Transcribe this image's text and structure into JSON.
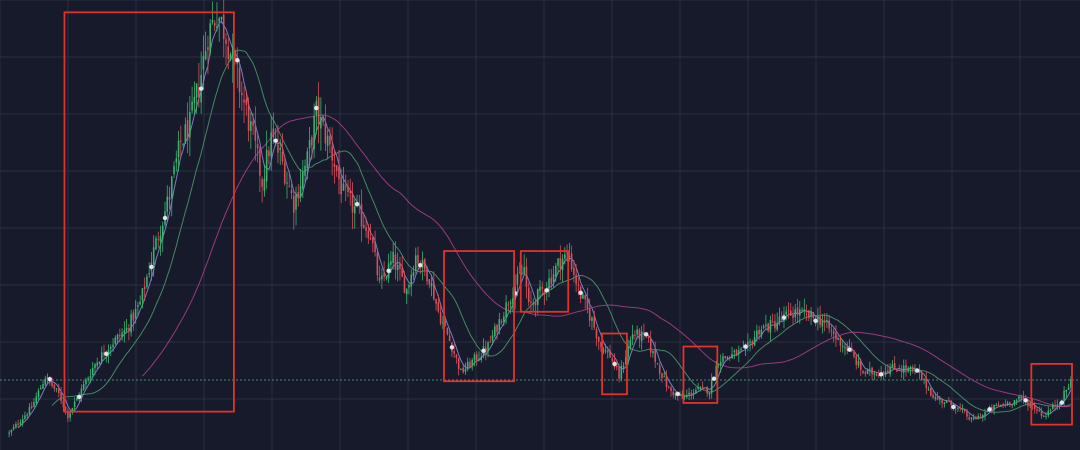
{
  "chart_data": {
    "type": "candlestick",
    "theme": {
      "background": "#161a2a",
      "grid": "#2a3042",
      "up": "#3cb371",
      "down": "#d94f5a",
      "highlight_box": "#e2322b",
      "dot": "#dfe3ea",
      "ma_fast": "#8a8fd8",
      "ma_mid": "#4f9a6f",
      "ma_slow": "#b0408f",
      "reference_line": "#3d8f73"
    },
    "grid": true,
    "y_range": [
      0,
      100
    ],
    "reference_level": 14.3,
    "price_path": [
      [
        0,
        2.0
      ],
      [
        10,
        8.0
      ],
      [
        16,
        15.0
      ],
      [
        22,
        11.0
      ],
      [
        26,
        6.0
      ],
      [
        32,
        12.0
      ],
      [
        38,
        18.0
      ],
      [
        44,
        22.0
      ],
      [
        52,
        26.0
      ],
      [
        58,
        32.0
      ],
      [
        64,
        44.0
      ],
      [
        70,
        55.0
      ],
      [
        76,
        69.0
      ],
      [
        80,
        73.0
      ],
      [
        84,
        82.0
      ],
      [
        88,
        94.0
      ],
      [
        92,
        99.0
      ],
      [
        96,
        94.0
      ],
      [
        102,
        82.0
      ],
      [
        108,
        70.0
      ],
      [
        112,
        60.0
      ],
      [
        116,
        70.0
      ],
      [
        120,
        66.0
      ],
      [
        126,
        55.0
      ],
      [
        132,
        65.0
      ],
      [
        136,
        76.0
      ],
      [
        142,
        68.0
      ],
      [
        148,
        57.0
      ],
      [
        154,
        53.0
      ],
      [
        160,
        48.0
      ],
      [
        164,
        36.0
      ],
      [
        170,
        42.0
      ],
      [
        176,
        35.0
      ],
      [
        180,
        43.0
      ],
      [
        186,
        38.0
      ],
      [
        190,
        30.0
      ],
      [
        196,
        22.0
      ],
      [
        200,
        16.0
      ],
      [
        206,
        19.0
      ],
      [
        212,
        22.0
      ],
      [
        218,
        29.0
      ],
      [
        224,
        36.0
      ],
      [
        228,
        40.0
      ],
      [
        230,
        31.0
      ],
      [
        236,
        35.0
      ],
      [
        240,
        38.0
      ],
      [
        244,
        42.0
      ],
      [
        248,
        43.0
      ],
      [
        252,
        35.0
      ],
      [
        258,
        28.0
      ],
      [
        262,
        22.0
      ],
      [
        266,
        20.0
      ],
      [
        270,
        15.0
      ],
      [
        276,
        25.0
      ],
      [
        282,
        24.0
      ],
      [
        286,
        19.0
      ],
      [
        292,
        12.0
      ],
      [
        298,
        10.0
      ],
      [
        304,
        12.0
      ],
      [
        310,
        12.0
      ],
      [
        314,
        19.0
      ],
      [
        320,
        20.0
      ],
      [
        326,
        21.0
      ],
      [
        332,
        26.0
      ],
      [
        338,
        27.0
      ],
      [
        344,
        29.0
      ],
      [
        348,
        30.0
      ],
      [
        354,
        29.0
      ],
      [
        360,
        28.0
      ],
      [
        366,
        24.0
      ],
      [
        372,
        21.0
      ],
      [
        378,
        16.0
      ],
      [
        384,
        16.0
      ],
      [
        390,
        17.0
      ],
      [
        396,
        17.0
      ],
      [
        402,
        16.0
      ],
      [
        406,
        13.0
      ],
      [
        410,
        10.0
      ],
      [
        416,
        9.0
      ],
      [
        422,
        7.0
      ],
      [
        426,
        5.0
      ],
      [
        430,
        6.0
      ],
      [
        436,
        8.0
      ],
      [
        442,
        9.0
      ],
      [
        448,
        10.0
      ],
      [
        454,
        8.0
      ],
      [
        458,
        6.0
      ],
      [
        462,
        8.0
      ],
      [
        466,
        10.0
      ],
      [
        470,
        14.0
      ]
    ],
    "moving_averages": [
      {
        "period": 5
      },
      {
        "period": 20
      },
      {
        "period": 60
      }
    ],
    "signal_markers": [
      18,
      31,
      43,
      63,
      69,
      85,
      101,
      118,
      136,
      154,
      168,
      182,
      196,
      210,
      224,
      238,
      253,
      268,
      282,
      296,
      312,
      326,
      343,
      357,
      372,
      386,
      402,
      418,
      434,
      450,
      466
    ],
    "highlight_ranges": [
      {
        "start": 25,
        "end": 99,
        "low": 7.0,
        "high": 99.0
      },
      {
        "start": 193,
        "end": 223,
        "low": 14.0,
        "high": 44.0
      },
      {
        "start": 227,
        "end": 247,
        "low": 30.0,
        "high": 44.0
      },
      {
        "start": 263,
        "end": 273,
        "low": 11.0,
        "high": 25.0
      },
      {
        "start": 299,
        "end": 313,
        "low": 9.0,
        "high": 22.0
      },
      {
        "start": 453,
        "end": 470,
        "low": 4.0,
        "high": 18.0
      }
    ],
    "candle_count": 471
  }
}
